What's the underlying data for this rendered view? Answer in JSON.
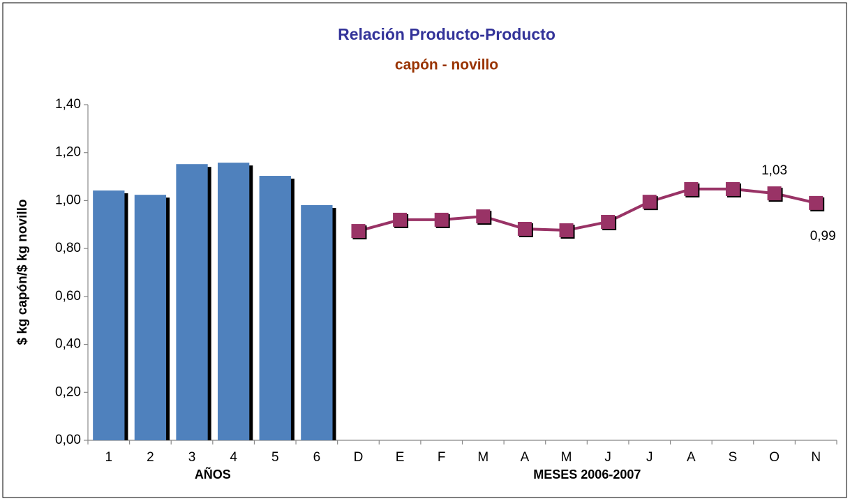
{
  "chart_data": {
    "type": "bar",
    "title": "Relación Producto-Producto",
    "subtitle": "capón - novillo",
    "y_label": "$ kg capón/$ kg novillo",
    "ylim": [
      0,
      1.4
    ],
    "yticks": [
      {
        "value": 0,
        "label": "0,00"
      },
      {
        "value": 0.2,
        "label": "0,20"
      },
      {
        "value": 0.4,
        "label": "0,40"
      },
      {
        "value": 0.6,
        "label": "0,60"
      },
      {
        "value": 0.8,
        "label": "0,80"
      },
      {
        "value": 1.0,
        "label": "1,00"
      },
      {
        "value": 1.2,
        "label": "1,20"
      },
      {
        "value": 1.4,
        "label": "1,40"
      }
    ],
    "groups": [
      {
        "label": "AÑOS",
        "categories": [
          "1",
          "2",
          "3",
          "4",
          "5",
          "6"
        ]
      },
      {
        "label": "MESES 2006-2007",
        "categories": [
          "D",
          "E",
          "F",
          "M",
          "A",
          "M",
          "J",
          "J",
          "A",
          "S",
          "O",
          "N"
        ]
      }
    ],
    "series": [
      {
        "type": "bar",
        "color": "#4f81bd",
        "values": [
          1.042,
          1.024,
          1.152,
          1.158,
          1.103,
          0.981
        ]
      },
      {
        "type": "line",
        "color": "#993366",
        "values": [
          0.873,
          0.92,
          0.92,
          0.934,
          0.882,
          0.876,
          0.911,
          0.995,
          1.048,
          1.048,
          1.03,
          0.99
        ],
        "value_labels": [
          null,
          null,
          null,
          null,
          null,
          null,
          null,
          null,
          null,
          null,
          "1,03",
          "0,99"
        ]
      }
    ]
  }
}
